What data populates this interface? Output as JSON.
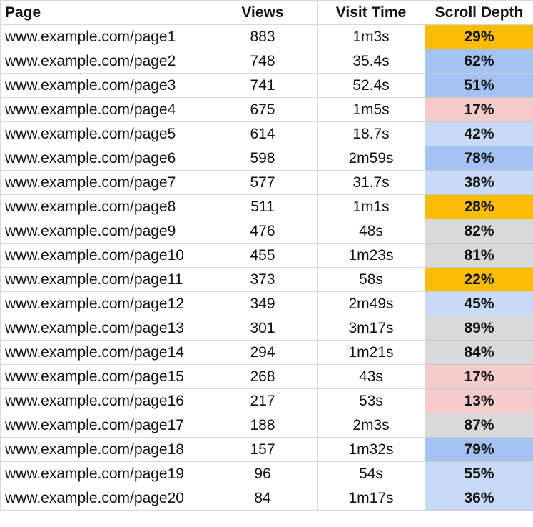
{
  "columns": {
    "page": "Page",
    "views": "Views",
    "visit_time": "Visit Time",
    "scroll_depth": "Scroll Depth"
  },
  "depth_colors": {
    "orange": "#fbbc04",
    "blue_dark": "#a4c2f4",
    "blue_light": "#c9daf8",
    "pink": "#f4cccc",
    "gray": "#d9d9d9"
  },
  "rows": [
    {
      "page": "www.example.com/page1",
      "views": "883",
      "time": "1m3s",
      "depth": "29%",
      "color": "#fbbc04"
    },
    {
      "page": "www.example.com/page2",
      "views": "748",
      "time": "35.4s",
      "depth": "62%",
      "color": "#a4c2f4"
    },
    {
      "page": "www.example.com/page3",
      "views": "741",
      "time": "52.4s",
      "depth": "51%",
      "color": "#a4c2f4"
    },
    {
      "page": "www.example.com/page4",
      "views": "675",
      "time": "1m5s",
      "depth": "17%",
      "color": "#f4cccc"
    },
    {
      "page": "www.example.com/page5",
      "views": "614",
      "time": "18.7s",
      "depth": "42%",
      "color": "#c9daf8"
    },
    {
      "page": "www.example.com/page6",
      "views": "598",
      "time": "2m59s",
      "depth": "78%",
      "color": "#a4c2f4"
    },
    {
      "page": "www.example.com/page7",
      "views": "577",
      "time": "31.7s",
      "depth": "38%",
      "color": "#c9daf8"
    },
    {
      "page": "www.example.com/page8",
      "views": "511",
      "time": "1m1s",
      "depth": "28%",
      "color": "#fbbc04"
    },
    {
      "page": "www.example.com/page9",
      "views": "476",
      "time": "48s",
      "depth": "82%",
      "color": "#d9d9d9"
    },
    {
      "page": "www.example.com/page10",
      "views": "455",
      "time": "1m23s",
      "depth": "81%",
      "color": "#d9d9d9"
    },
    {
      "page": "www.example.com/page11",
      "views": "373",
      "time": "58s",
      "depth": "22%",
      "color": "#fbbc04"
    },
    {
      "page": "www.example.com/page12",
      "views": "349",
      "time": "2m49s",
      "depth": "45%",
      "color": "#c9daf8"
    },
    {
      "page": "www.example.com/page13",
      "views": "301",
      "time": "3m17s",
      "depth": "89%",
      "color": "#d9d9d9"
    },
    {
      "page": "www.example.com/page14",
      "views": "294",
      "time": "1m21s",
      "depth": "84%",
      "color": "#d9d9d9"
    },
    {
      "page": "www.example.com/page15",
      "views": "268",
      "time": "43s",
      "depth": "17%",
      "color": "#f4cccc"
    },
    {
      "page": "www.example.com/page16",
      "views": "217",
      "time": "53s",
      "depth": "13%",
      "color": "#f4cccc"
    },
    {
      "page": "www.example.com/page17",
      "views": "188",
      "time": "2m3s",
      "depth": "87%",
      "color": "#d9d9d9"
    },
    {
      "page": "www.example.com/page18",
      "views": "157",
      "time": "1m32s",
      "depth": "79%",
      "color": "#a4c2f4"
    },
    {
      "page": "www.example.com/page19",
      "views": "96",
      "time": "54s",
      "depth": "55%",
      "color": "#c9daf8"
    },
    {
      "page": "www.example.com/page20",
      "views": "84",
      "time": "1m17s",
      "depth": "36%",
      "color": "#c9daf8"
    }
  ]
}
